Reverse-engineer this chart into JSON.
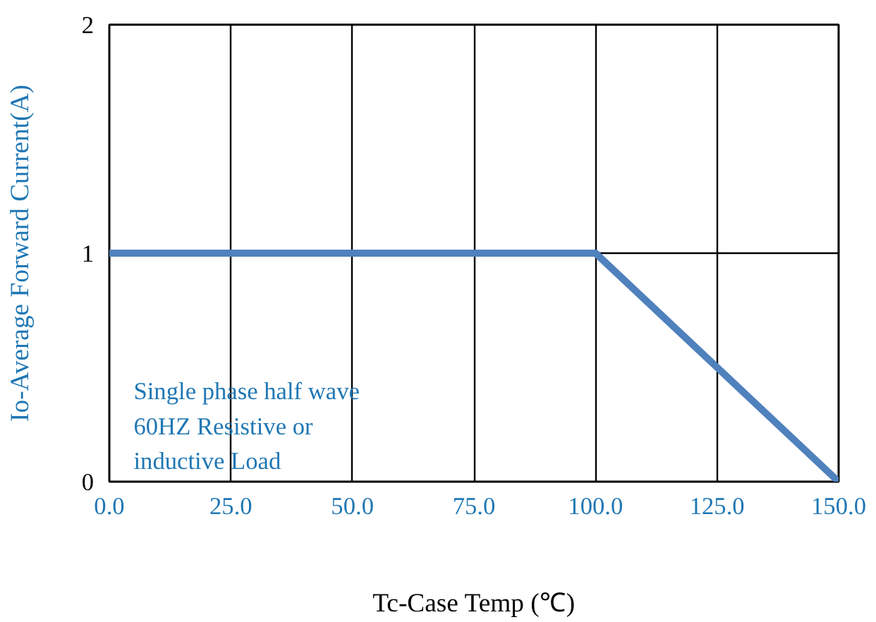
{
  "chart_data": {
    "type": "line",
    "xlabel": "Tc-Case Temp (℃)",
    "ylabel": "Io-Average Forward Current(A)",
    "x": [
      0,
      100,
      150
    ],
    "series": [
      {
        "color": "#4f81bd",
        "values": [
          1,
          1,
          0
        ]
      }
    ],
    "xlim": [
      0,
      150
    ],
    "ylim": [
      0,
      2
    ],
    "xticks": [
      {
        "value": 0,
        "label": "0.0"
      },
      {
        "value": 25,
        "label": "25.0"
      },
      {
        "value": 50,
        "label": "50.0"
      },
      {
        "value": 75,
        "label": "75.0"
      },
      {
        "value": 100,
        "label": "100.0"
      },
      {
        "value": 125,
        "label": "125.0"
      },
      {
        "value": 150,
        "label": "150.0"
      }
    ],
    "yticks": [
      0,
      1,
      2
    ],
    "grid": true,
    "marker": "none",
    "line_style": "solid",
    "annotations": [
      "Single phase half wave\n 60HZ Resistive or\ninductive Load"
    ]
  }
}
